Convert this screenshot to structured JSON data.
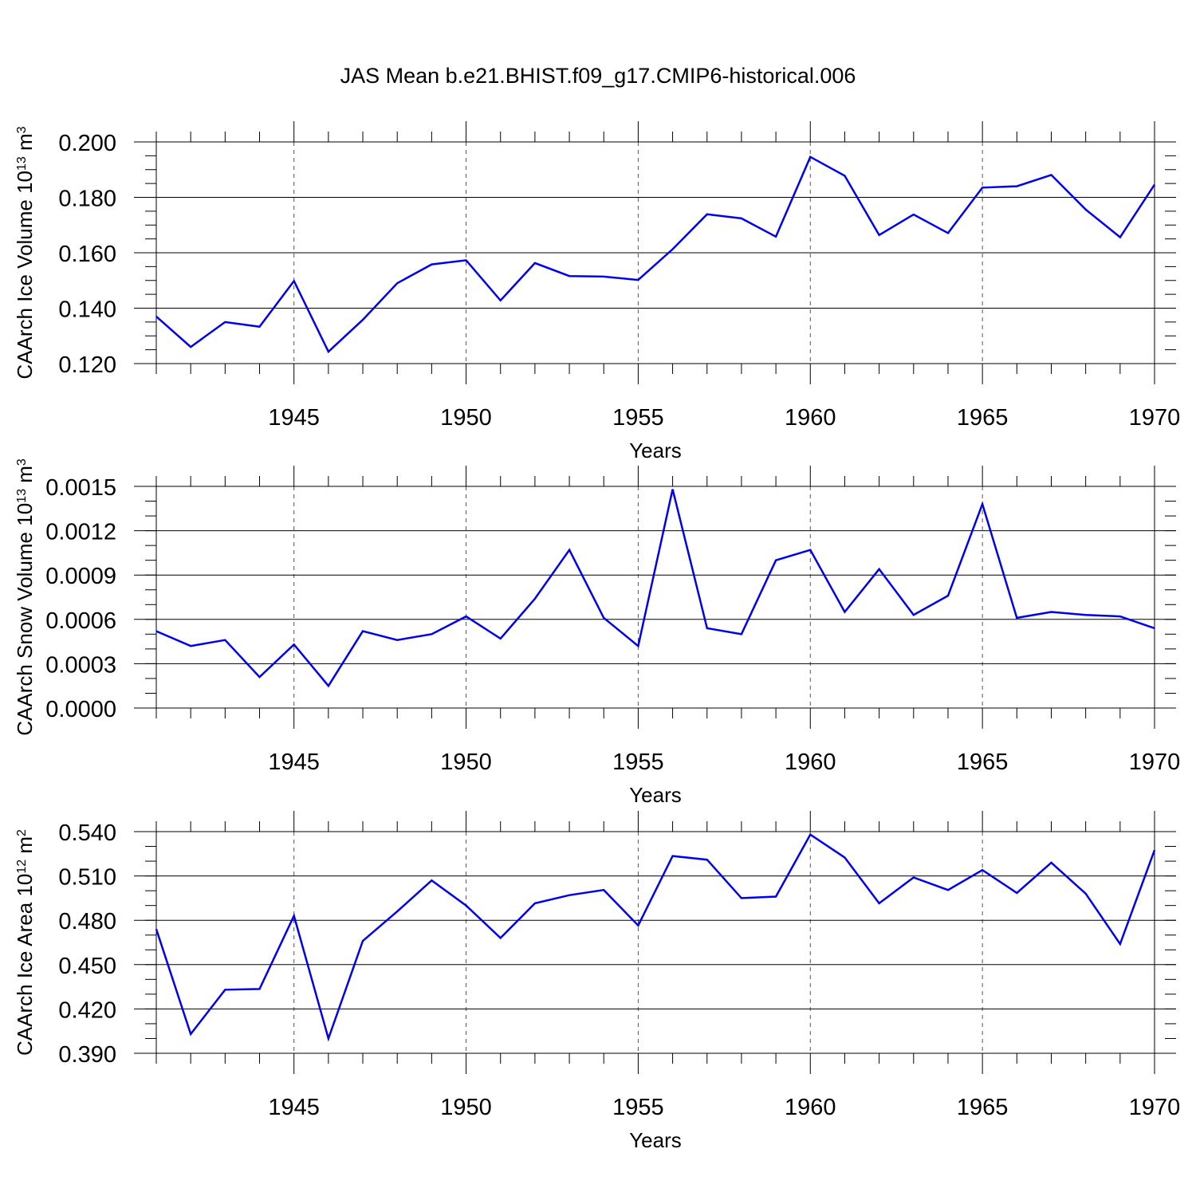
{
  "figure_title": "JAS Mean b.e21.BHIST.f09_g17.CMIP6-historical.006",
  "colors": {
    "line": "#0000ee",
    "axis": "#000000",
    "grid": "#555555"
  },
  "chart_data": [
    {
      "type": "line",
      "title": "JAS Mean b.e21.BHIST.f09_g17.CMIP6-historical.006",
      "xlabel": "Years",
      "ylabel_main": "CAArch Ice Volume 10",
      "ylabel_exp": "13",
      "ylabel_tail": " m",
      "ylabel_unit_exp": "3",
      "xlim": [
        1941,
        1970
      ],
      "ylim": [
        0.12,
        0.2
      ],
      "xticks": [
        1945,
        1950,
        1955,
        1960,
        1965,
        1970
      ],
      "xtick_labels": [
        "1945",
        "1950",
        "1955",
        "1960",
        "1965",
        "1970"
      ],
      "yticks": [
        0.12,
        0.14,
        0.16,
        0.18,
        0.2
      ],
      "ytick_labels": [
        "0.120",
        "0.140",
        "0.160",
        "0.180",
        "0.200"
      ],
      "y_minor_step": 0.005,
      "grid": "dashed vertical at major x ticks",
      "series": [
        {
          "name": "CAArch Ice Volume",
          "x": [
            1941,
            1942,
            1943,
            1944,
            1945,
            1946,
            1947,
            1948,
            1949,
            1950,
            1951,
            1952,
            1953,
            1954,
            1955,
            1956,
            1957,
            1958,
            1959,
            1960,
            1961,
            1962,
            1963,
            1964,
            1965,
            1966,
            1967,
            1968,
            1969,
            1970
          ],
          "values": [
            0.137,
            0.126,
            0.135,
            0.1333,
            0.1498,
            0.1243,
            0.1358,
            0.149,
            0.1558,
            0.1573,
            0.1428,
            0.1563,
            0.1516,
            0.1514,
            0.1502,
            0.1613,
            0.1739,
            0.1724,
            0.1658,
            0.1946,
            0.1878,
            0.1664,
            0.1738,
            0.1671,
            0.1835,
            0.184,
            0.1881,
            0.1756,
            0.1656,
            0.1846
          ]
        }
      ]
    },
    {
      "type": "line",
      "xlabel": "Years",
      "ylabel_main": "CAArch Snow Volume 10",
      "ylabel_exp": "13",
      "ylabel_tail": " m",
      "ylabel_unit_exp": "3",
      "xlim": [
        1941,
        1970
      ],
      "ylim": [
        0.0,
        0.0015
      ],
      "xticks": [
        1945,
        1950,
        1955,
        1960,
        1965,
        1970
      ],
      "xtick_labels": [
        "1945",
        "1950",
        "1955",
        "1960",
        "1965",
        "1970"
      ],
      "yticks": [
        0.0,
        0.0003,
        0.0006,
        0.0009,
        0.0012,
        0.0015
      ],
      "ytick_labels": [
        "0.0000",
        "0.0003",
        "0.0006",
        "0.0009",
        "0.0012",
        "0.0015"
      ],
      "y_minor_step": 0.0001,
      "grid": "dashed vertical at major x ticks",
      "series": [
        {
          "name": "CAArch Snow Volume",
          "x": [
            1941,
            1942,
            1943,
            1944,
            1945,
            1946,
            1947,
            1948,
            1949,
            1950,
            1951,
            1952,
            1953,
            1954,
            1955,
            1956,
            1957,
            1958,
            1959,
            1960,
            1961,
            1962,
            1963,
            1964,
            1965,
            1966,
            1967,
            1968,
            1969,
            1970
          ],
          "values": [
            0.00052,
            0.00042,
            0.00046,
            0.00021,
            0.00043,
            0.00015,
            0.00052,
            0.00046,
            0.0005,
            0.00062,
            0.00047,
            0.00074,
            0.00107,
            0.00061,
            0.00042,
            0.00148,
            0.00054,
            0.0005,
            0.001,
            0.00107,
            0.00065,
            0.00094,
            0.00063,
            0.00076,
            0.00138,
            0.00061,
            0.00065,
            0.00063,
            0.00062,
            0.00054
          ]
        }
      ]
    },
    {
      "type": "line",
      "xlabel": "Years",
      "ylabel_main": "CAArch Ice Area 10",
      "ylabel_exp": "12",
      "ylabel_tail": " m",
      "ylabel_unit_exp": "2",
      "xlim": [
        1941,
        1970
      ],
      "ylim": [
        0.39,
        0.54
      ],
      "xticks": [
        1945,
        1950,
        1955,
        1960,
        1965,
        1970
      ],
      "xtick_labels": [
        "1945",
        "1950",
        "1955",
        "1960",
        "1965",
        "1970"
      ],
      "yticks": [
        0.39,
        0.42,
        0.45,
        0.48,
        0.51,
        0.54
      ],
      "ytick_labels": [
        "0.390",
        "0.420",
        "0.450",
        "0.480",
        "0.510",
        "0.540"
      ],
      "y_minor_step": 0.01,
      "grid": "dashed vertical at major x ticks",
      "series": [
        {
          "name": "CAArch Ice Area",
          "x": [
            1941,
            1942,
            1943,
            1944,
            1945,
            1946,
            1947,
            1948,
            1949,
            1950,
            1951,
            1952,
            1953,
            1954,
            1955,
            1956,
            1957,
            1958,
            1959,
            1960,
            1961,
            1962,
            1963,
            1964,
            1965,
            1966,
            1967,
            1968,
            1969,
            1970
          ],
          "values": [
            0.474,
            0.403,
            0.433,
            0.4335,
            0.483,
            0.4,
            0.466,
            0.486,
            0.507,
            0.49,
            0.468,
            0.4915,
            0.497,
            0.5005,
            0.4765,
            0.5235,
            0.521,
            0.495,
            0.496,
            0.538,
            0.5225,
            0.4915,
            0.509,
            0.5005,
            0.514,
            0.4985,
            0.519,
            0.498,
            0.464,
            0.5275
          ]
        }
      ]
    }
  ]
}
